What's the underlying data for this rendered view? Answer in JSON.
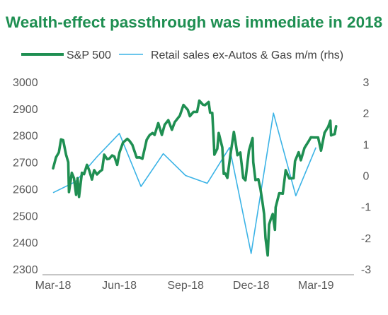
{
  "chart_data": {
    "type": "line",
    "title": "Wealth-effect passthrough was immediate in 2018",
    "colors": {
      "title": "#1f8f52",
      "sp500": "#1f8f52",
      "retail": "#3bb3e6",
      "axis": "#8c8c8c",
      "text": "#595959"
    },
    "x_ticks": [
      "Mar-18",
      "Jun-18",
      "Sep-18",
      "Dec-18",
      "Mar-19"
    ],
    "x_range": [
      "2018-03-01",
      "2019-04-15"
    ],
    "y_left": {
      "lim": [
        2300,
        3000
      ],
      "ticks": [
        "3000",
        "2900",
        "2800",
        "2700",
        "2600",
        "2500",
        "2400",
        "2300"
      ]
    },
    "y_right": {
      "lim": [
        -3,
        3
      ],
      "ticks": [
        "3",
        "2",
        "1",
        "0",
        "-1",
        "-2",
        "-3"
      ]
    },
    "legend_position": "top",
    "grid": false,
    "series": [
      {
        "name": "S&P 500",
        "axis": "left",
        "data": [
          [
            "2018-03-01",
            2677
          ],
          [
            "2018-03-05",
            2718
          ],
          [
            "2018-03-09",
            2736
          ],
          [
            "2018-03-12",
            2785
          ],
          [
            "2018-03-15",
            2782
          ],
          [
            "2018-03-19",
            2728
          ],
          [
            "2018-03-22",
            2700
          ],
          [
            "2018-03-23",
            2588
          ],
          [
            "2018-03-27",
            2660
          ],
          [
            "2018-03-30",
            2640
          ],
          [
            "2018-04-02",
            2578
          ],
          [
            "2018-04-04",
            2640
          ],
          [
            "2018-04-06",
            2570
          ],
          [
            "2018-04-10",
            2660
          ],
          [
            "2018-04-13",
            2655
          ],
          [
            "2018-04-17",
            2690
          ],
          [
            "2018-04-20",
            2670
          ],
          [
            "2018-04-24",
            2635
          ],
          [
            "2018-04-27",
            2670
          ],
          [
            "2018-05-01",
            2654
          ],
          [
            "2018-05-04",
            2663
          ],
          [
            "2018-05-08",
            2671
          ],
          [
            "2018-05-11",
            2728
          ],
          [
            "2018-05-15",
            2711
          ],
          [
            "2018-05-18",
            2713
          ],
          [
            "2018-05-22",
            2725
          ],
          [
            "2018-05-25",
            2721
          ],
          [
            "2018-05-29",
            2690
          ],
          [
            "2018-06-01",
            2735
          ],
          [
            "2018-06-06",
            2773
          ],
          [
            "2018-06-12",
            2787
          ],
          [
            "2018-06-15",
            2780
          ],
          [
            "2018-06-19",
            2765
          ],
          [
            "2018-06-25",
            2717
          ],
          [
            "2018-06-29",
            2718
          ],
          [
            "2018-07-03",
            2713
          ],
          [
            "2018-07-09",
            2784
          ],
          [
            "2018-07-13",
            2801
          ],
          [
            "2018-07-17",
            2809
          ],
          [
            "2018-07-20",
            2802
          ],
          [
            "2018-07-25",
            2846
          ],
          [
            "2018-07-30",
            2802
          ],
          [
            "2018-08-03",
            2840
          ],
          [
            "2018-08-08",
            2857
          ],
          [
            "2018-08-13",
            2821
          ],
          [
            "2018-08-17",
            2850
          ],
          [
            "2018-08-24",
            2874
          ],
          [
            "2018-08-29",
            2914
          ],
          [
            "2018-09-04",
            2896
          ],
          [
            "2018-09-07",
            2872
          ],
          [
            "2018-09-12",
            2888
          ],
          [
            "2018-09-17",
            2888
          ],
          [
            "2018-09-20",
            2930
          ],
          [
            "2018-09-25",
            2915
          ],
          [
            "2018-09-28",
            2913
          ],
          [
            "2018-10-03",
            2925
          ],
          [
            "2018-10-05",
            2885
          ],
          [
            "2018-10-08",
            2884
          ],
          [
            "2018-10-10",
            2785
          ],
          [
            "2018-10-11",
            2728
          ],
          [
            "2018-10-15",
            2750
          ],
          [
            "2018-10-17",
            2809
          ],
          [
            "2018-10-22",
            2755
          ],
          [
            "2018-10-24",
            2656
          ],
          [
            "2018-10-26",
            2658
          ],
          [
            "2018-10-29",
            2641
          ],
          [
            "2018-11-02",
            2723
          ],
          [
            "2018-11-07",
            2813
          ],
          [
            "2018-11-09",
            2781
          ],
          [
            "2018-11-12",
            2726
          ],
          [
            "2018-11-16",
            2736
          ],
          [
            "2018-11-20",
            2641
          ],
          [
            "2018-11-23",
            2632
          ],
          [
            "2018-11-28",
            2743
          ],
          [
            "2018-12-03",
            2790
          ],
          [
            "2018-12-04",
            2700
          ],
          [
            "2018-12-07",
            2633
          ],
          [
            "2018-12-11",
            2636
          ],
          [
            "2018-12-14",
            2599
          ],
          [
            "2018-12-17",
            2545
          ],
          [
            "2018-12-19",
            2506
          ],
          [
            "2018-12-21",
            2416
          ],
          [
            "2018-12-24",
            2351
          ],
          [
            "2018-12-26",
            2467
          ],
          [
            "2018-12-28",
            2485
          ],
          [
            "2018-12-31",
            2506
          ],
          [
            "2019-01-03",
            2447
          ],
          [
            "2019-01-04",
            2531
          ],
          [
            "2019-01-09",
            2584
          ],
          [
            "2019-01-14",
            2582
          ],
          [
            "2019-01-18",
            2670
          ],
          [
            "2019-01-23",
            2639
          ],
          [
            "2019-01-29",
            2640
          ],
          [
            "2019-01-31",
            2704
          ],
          [
            "2019-02-05",
            2737
          ],
          [
            "2019-02-08",
            2707
          ],
          [
            "2019-02-13",
            2753
          ],
          [
            "2019-02-19",
            2779
          ],
          [
            "2019-02-22",
            2793
          ],
          [
            "2019-02-27",
            2792
          ],
          [
            "2019-03-04",
            2792
          ],
          [
            "2019-03-08",
            2743
          ],
          [
            "2019-03-13",
            2810
          ],
          [
            "2019-03-18",
            2832
          ],
          [
            "2019-03-21",
            2855
          ],
          [
            "2019-03-22",
            2800
          ],
          [
            "2019-03-27",
            2805
          ],
          [
            "2019-03-29",
            2834
          ]
        ]
      },
      {
        "name": "Retail sales ex-Autos & Gas m/m (rhs)",
        "axis": "right",
        "data": [
          [
            "2018-03-01",
            -0.55
          ],
          [
            "2018-04-01",
            -0.2
          ],
          [
            "2018-05-01",
            0.6
          ],
          [
            "2018-06-01",
            1.35
          ],
          [
            "2018-07-01",
            -0.35
          ],
          [
            "2018-08-01",
            0.7
          ],
          [
            "2018-09-01",
            0.0
          ],
          [
            "2018-10-01",
            -0.25
          ],
          [
            "2018-11-01",
            0.9
          ],
          [
            "2018-12-01",
            -2.5
          ],
          [
            "2019-01-01",
            2.0
          ],
          [
            "2019-02-01",
            -0.65
          ],
          [
            "2019-03-01",
            0.9
          ]
        ]
      }
    ]
  }
}
